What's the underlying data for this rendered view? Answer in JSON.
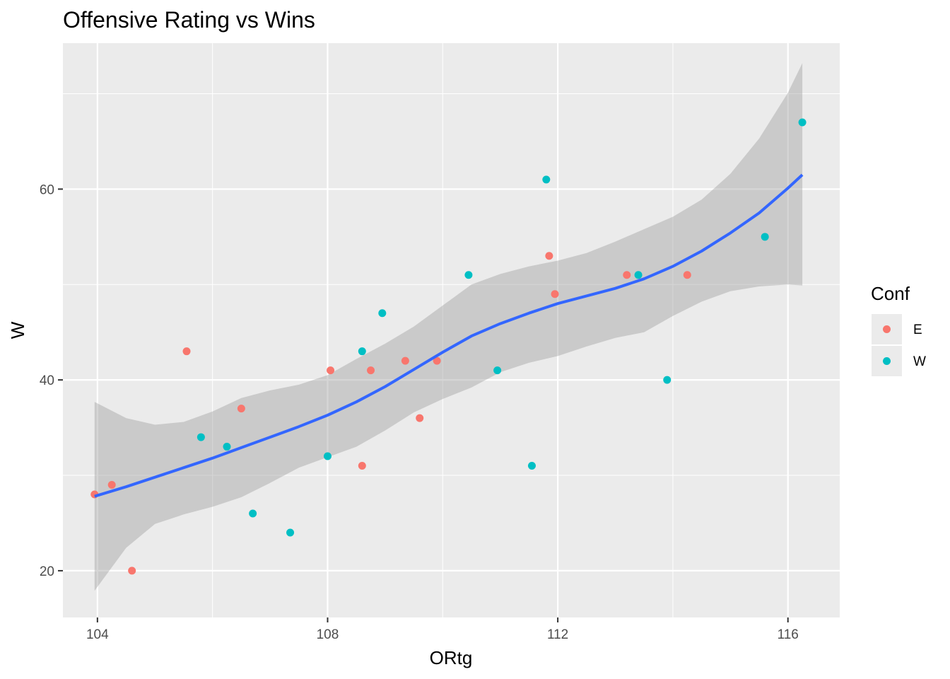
{
  "chart_data": {
    "type": "scatter",
    "title": "Offensive Rating vs Wins",
    "xlabel": "ORtg",
    "ylabel": "W",
    "xlim": [
      103.4,
      116.9
    ],
    "ylim": [
      15.1,
      75.3
    ],
    "x_ticks": [
      104,
      108,
      112,
      116
    ],
    "y_ticks": [
      20,
      40,
      60
    ],
    "grid": true,
    "legend": {
      "title": "Conf",
      "position": "right"
    },
    "series": [
      {
        "name": "E",
        "color": "#F8766D",
        "points": [
          {
            "x": 103.95,
            "y": 28
          },
          {
            "x": 104.25,
            "y": 29
          },
          {
            "x": 104.6,
            "y": 20
          },
          {
            "x": 105.55,
            "y": 43
          },
          {
            "x": 106.5,
            "y": 37
          },
          {
            "x": 108.05,
            "y": 41
          },
          {
            "x": 108.6,
            "y": 31
          },
          {
            "x": 108.75,
            "y": 41
          },
          {
            "x": 109.35,
            "y": 42
          },
          {
            "x": 109.6,
            "y": 36
          },
          {
            "x": 109.9,
            "y": 42
          },
          {
            "x": 111.85,
            "y": 53
          },
          {
            "x": 111.95,
            "y": 49
          },
          {
            "x": 113.2,
            "y": 51
          },
          {
            "x": 114.25,
            "y": 51
          }
        ]
      },
      {
        "name": "W",
        "color": "#00BFC4",
        "points": [
          {
            "x": 105.8,
            "y": 34
          },
          {
            "x": 106.25,
            "y": 33
          },
          {
            "x": 106.7,
            "y": 26
          },
          {
            "x": 107.35,
            "y": 24
          },
          {
            "x": 108.0,
            "y": 32
          },
          {
            "x": 108.6,
            "y": 43
          },
          {
            "x": 108.95,
            "y": 47
          },
          {
            "x": 110.45,
            "y": 51
          },
          {
            "x": 110.95,
            "y": 41
          },
          {
            "x": 111.55,
            "y": 31
          },
          {
            "x": 111.8,
            "y": 61
          },
          {
            "x": 113.4,
            "y": 51
          },
          {
            "x": 113.9,
            "y": 40
          },
          {
            "x": 115.6,
            "y": 55
          },
          {
            "x": 116.25,
            "y": 67
          }
        ]
      }
    ],
    "smooth": {
      "color": "#3366FF",
      "band_color": "#999999",
      "points": [
        {
          "x": 103.95,
          "y": 27.8,
          "lo": 17.9,
          "hi": 37.7
        },
        {
          "x": 104.5,
          "y": 28.8,
          "lo": 22.4,
          "hi": 36.0
        },
        {
          "x": 105.0,
          "y": 29.8,
          "lo": 24.9,
          "hi": 35.3
        },
        {
          "x": 105.5,
          "y": 30.8,
          "lo": 25.9,
          "hi": 35.6
        },
        {
          "x": 106.0,
          "y": 31.8,
          "lo": 26.7,
          "hi": 36.7
        },
        {
          "x": 106.5,
          "y": 32.9,
          "lo": 27.7,
          "hi": 38.1
        },
        {
          "x": 107.0,
          "y": 34.0,
          "lo": 29.2,
          "hi": 38.9
        },
        {
          "x": 107.5,
          "y": 35.1,
          "lo": 30.8,
          "hi": 39.5
        },
        {
          "x": 108.0,
          "y": 36.3,
          "lo": 31.9,
          "hi": 40.5
        },
        {
          "x": 108.5,
          "y": 37.7,
          "lo": 33.0,
          "hi": 42.2
        },
        {
          "x": 109.0,
          "y": 39.3,
          "lo": 34.7,
          "hi": 43.8
        },
        {
          "x": 109.5,
          "y": 41.1,
          "lo": 36.6,
          "hi": 45.6
        },
        {
          "x": 110.0,
          "y": 42.9,
          "lo": 38.0,
          "hi": 47.8
        },
        {
          "x": 110.5,
          "y": 44.6,
          "lo": 39.2,
          "hi": 50.0
        },
        {
          "x": 111.0,
          "y": 45.9,
          "lo": 40.8,
          "hi": 51.1
        },
        {
          "x": 111.5,
          "y": 47.0,
          "lo": 41.8,
          "hi": 51.9
        },
        {
          "x": 112.0,
          "y": 48.0,
          "lo": 42.5,
          "hi": 52.5
        },
        {
          "x": 112.5,
          "y": 48.8,
          "lo": 43.5,
          "hi": 53.3
        },
        {
          "x": 113.0,
          "y": 49.6,
          "lo": 44.4,
          "hi": 54.5
        },
        {
          "x": 113.5,
          "y": 50.6,
          "lo": 45.0,
          "hi": 55.8
        },
        {
          "x": 114.0,
          "y": 51.9,
          "lo": 46.7,
          "hi": 57.1
        },
        {
          "x": 114.5,
          "y": 53.5,
          "lo": 48.2,
          "hi": 58.9
        },
        {
          "x": 115.0,
          "y": 55.4,
          "lo": 49.3,
          "hi": 61.6
        },
        {
          "x": 115.5,
          "y": 57.5,
          "lo": 49.8,
          "hi": 65.3
        },
        {
          "x": 116.0,
          "y": 60.1,
          "lo": 50.0,
          "hi": 70.1
        },
        {
          "x": 116.25,
          "y": 61.5,
          "lo": 49.9,
          "hi": 73.2
        }
      ]
    }
  }
}
